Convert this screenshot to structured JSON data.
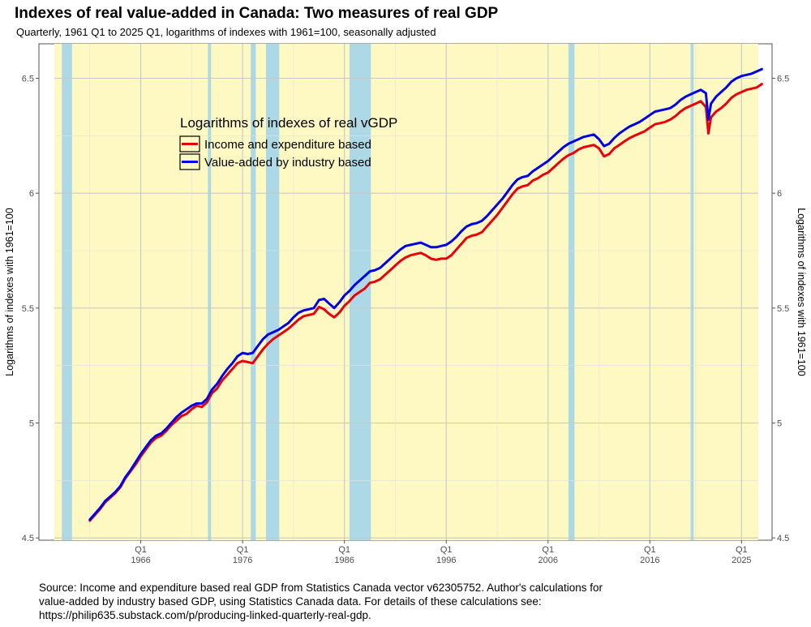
{
  "chart_data": {
    "type": "line",
    "title": "Indexes of real value-added in Canada: Two measures of real GDP",
    "subtitle": "Quarterly, 1961 Q1 to 2025 Q1, logarithms of indexes with 1961=100, seasonally adjusted",
    "ylabel_left": "Logarithms of indexes with 1961=100",
    "ylabel_right": "Logarithms of indexes with 1961=100",
    "xlim": [
      1956.0,
      2028.0
    ],
    "ylim": [
      4.49,
      6.65
    ],
    "x_ticks": [
      {
        "value": 1966.0,
        "quarter": "Q1",
        "year": "1966"
      },
      {
        "value": 1976.0,
        "quarter": "Q1",
        "year": "1976"
      },
      {
        "value": 1986.0,
        "quarter": "Q1",
        "year": "1986"
      },
      {
        "value": 1996.0,
        "quarter": "Q1",
        "year": "1996"
      },
      {
        "value": 2006.0,
        "quarter": "Q1",
        "year": "2006"
      },
      {
        "value": 2016.0,
        "quarter": "Q1",
        "year": "2016"
      },
      {
        "value": 2025.0,
        "quarter": "Q1",
        "year": "2025"
      }
    ],
    "y_ticks": [
      {
        "value": 4.5,
        "label": "4.5"
      },
      {
        "value": 5.0,
        "label": "5"
      },
      {
        "value": 5.5,
        "label": "5.5"
      },
      {
        "value": 6.0,
        "label": "6"
      },
      {
        "value": 6.5,
        "label": "6.5"
      }
    ],
    "recessions": [
      [
        1958.25,
        1959.25
      ],
      [
        1972.6,
        1972.9
      ],
      [
        1976.8,
        1977.3
      ],
      [
        1978.3,
        1979.6
      ],
      [
        1986.5,
        1988.6
      ],
      [
        2008.0,
        2008.6
      ],
      [
        2020.0,
        2020.3
      ]
    ],
    "legend": {
      "title": "Logarithms of indexes of real vGDP",
      "position": "upper-left-inside"
    },
    "series": [
      {
        "name": "Income and expenditure based",
        "color": "#e8000b",
        "points": [
          [
            1961.0,
            4.575
          ],
          [
            1961.5,
            4.6
          ],
          [
            1962.0,
            4.625
          ],
          [
            1962.5,
            4.655
          ],
          [
            1963.0,
            4.675
          ],
          [
            1963.5,
            4.695
          ],
          [
            1964.0,
            4.72
          ],
          [
            1964.5,
            4.76
          ],
          [
            1965.0,
            4.79
          ],
          [
            1965.5,
            4.82
          ],
          [
            1966.0,
            4.855
          ],
          [
            1966.5,
            4.885
          ],
          [
            1967.0,
            4.915
          ],
          [
            1967.5,
            4.935
          ],
          [
            1968.0,
            4.945
          ],
          [
            1968.5,
            4.965
          ],
          [
            1969.0,
            4.99
          ],
          [
            1969.5,
            5.01
          ],
          [
            1970.0,
            5.03
          ],
          [
            1970.5,
            5.04
          ],
          [
            1971.0,
            5.06
          ],
          [
            1971.5,
            5.075
          ],
          [
            1972.0,
            5.07
          ],
          [
            1972.5,
            5.09
          ],
          [
            1973.0,
            5.13
          ],
          [
            1973.5,
            5.15
          ],
          [
            1974.0,
            5.185
          ],
          [
            1974.5,
            5.21
          ],
          [
            1975.0,
            5.235
          ],
          [
            1975.5,
            5.26
          ],
          [
            1976.0,
            5.27
          ],
          [
            1976.5,
            5.265
          ],
          [
            1977.0,
            5.26
          ],
          [
            1977.5,
            5.29
          ],
          [
            1978.0,
            5.32
          ],
          [
            1978.5,
            5.345
          ],
          [
            1979.0,
            5.365
          ],
          [
            1979.5,
            5.38
          ],
          [
            1980.0,
            5.395
          ],
          [
            1980.5,
            5.41
          ],
          [
            1981.0,
            5.43
          ],
          [
            1981.5,
            5.45
          ],
          [
            1982.0,
            5.465
          ],
          [
            1982.5,
            5.47
          ],
          [
            1983.0,
            5.475
          ],
          [
            1983.5,
            5.505
          ],
          [
            1984.0,
            5.495
          ],
          [
            1984.5,
            5.475
          ],
          [
            1985.0,
            5.46
          ],
          [
            1985.5,
            5.48
          ],
          [
            1986.0,
            5.51
          ],
          [
            1986.5,
            5.53
          ],
          [
            1987.0,
            5.555
          ],
          [
            1987.5,
            5.57
          ],
          [
            1988.0,
            5.585
          ],
          [
            1988.5,
            5.61
          ],
          [
            1989.0,
            5.615
          ],
          [
            1989.5,
            5.625
          ],
          [
            1990.0,
            5.645
          ],
          [
            1990.5,
            5.665
          ],
          [
            1991.0,
            5.685
          ],
          [
            1991.5,
            5.705
          ],
          [
            1992.0,
            5.72
          ],
          [
            1992.5,
            5.73
          ],
          [
            1993.0,
            5.735
          ],
          [
            1993.5,
            5.74
          ],
          [
            1994.0,
            5.73
          ],
          [
            1994.5,
            5.715
          ],
          [
            1995.0,
            5.71
          ],
          [
            1995.5,
            5.715
          ],
          [
            1996.0,
            5.715
          ],
          [
            1996.5,
            5.73
          ],
          [
            1997.0,
            5.755
          ],
          [
            1997.5,
            5.78
          ],
          [
            1998.0,
            5.805
          ],
          [
            1998.5,
            5.815
          ],
          [
            1999.0,
            5.82
          ],
          [
            1999.5,
            5.83
          ],
          [
            2000.0,
            5.855
          ],
          [
            2000.5,
            5.88
          ],
          [
            2001.0,
            5.905
          ],
          [
            2001.5,
            5.935
          ],
          [
            2002.0,
            5.965
          ],
          [
            2002.5,
            5.995
          ],
          [
            2003.0,
            6.02
          ],
          [
            2003.5,
            6.03
          ],
          [
            2004.0,
            6.035
          ],
          [
            2004.5,
            6.055
          ],
          [
            2005.0,
            6.065
          ],
          [
            2005.5,
            6.08
          ],
          [
            2006.0,
            6.09
          ],
          [
            2006.5,
            6.11
          ],
          [
            2007.0,
            6.13
          ],
          [
            2007.5,
            6.15
          ],
          [
            2008.0,
            6.165
          ],
          [
            2008.5,
            6.175
          ],
          [
            2009.0,
            6.19
          ],
          [
            2009.5,
            6.2
          ],
          [
            2010.0,
            6.205
          ],
          [
            2010.5,
            6.21
          ],
          [
            2011.0,
            6.195
          ],
          [
            2011.5,
            6.16
          ],
          [
            2012.0,
            6.17
          ],
          [
            2012.5,
            6.195
          ],
          [
            2013.0,
            6.21
          ],
          [
            2013.5,
            6.225
          ],
          [
            2014.0,
            6.24
          ],
          [
            2014.5,
            6.25
          ],
          [
            2015.0,
            6.26
          ],
          [
            2015.5,
            6.27
          ],
          [
            2016.0,
            6.285
          ],
          [
            2016.5,
            6.3
          ],
          [
            2017.0,
            6.305
          ],
          [
            2017.5,
            6.31
          ],
          [
            2018.0,
            6.32
          ],
          [
            2018.5,
            6.335
          ],
          [
            2019.0,
            6.355
          ],
          [
            2019.5,
            6.37
          ],
          [
            2020.0,
            6.38
          ],
          [
            2020.5,
            6.39
          ],
          [
            2021.0,
            6.4
          ],
          [
            2021.5,
            6.375
          ],
          [
            2021.75,
            6.26
          ],
          [
            2022.0,
            6.33
          ],
          [
            2022.5,
            6.355
          ],
          [
            2023.0,
            6.37
          ],
          [
            2023.5,
            6.39
          ],
          [
            2024.0,
            6.415
          ],
          [
            2024.5,
            6.43
          ],
          [
            2025.0,
            6.44
          ],
          [
            2025.5,
            6.45
          ],
          [
            2026.0,
            6.455
          ],
          [
            2026.5,
            6.46
          ],
          [
            2027.0,
            6.475
          ]
        ]
      },
      {
        "name": "Value-added by industry based",
        "color": "#0000e6",
        "points": [
          [
            1961.0,
            4.58
          ],
          [
            1961.5,
            4.605
          ],
          [
            1962.0,
            4.63
          ],
          [
            1962.5,
            4.66
          ],
          [
            1963.0,
            4.68
          ],
          [
            1963.5,
            4.7
          ],
          [
            1964.0,
            4.725
          ],
          [
            1964.5,
            4.765
          ],
          [
            1965.0,
            4.795
          ],
          [
            1965.5,
            4.83
          ],
          [
            1966.0,
            4.865
          ],
          [
            1966.5,
            4.895
          ],
          [
            1967.0,
            4.925
          ],
          [
            1967.5,
            4.945
          ],
          [
            1968.0,
            4.955
          ],
          [
            1968.5,
            4.975
          ],
          [
            1969.0,
            5.0
          ],
          [
            1969.5,
            5.025
          ],
          [
            1970.0,
            5.045
          ],
          [
            1970.5,
            5.06
          ],
          [
            1971.0,
            5.075
          ],
          [
            1971.5,
            5.085
          ],
          [
            1972.0,
            5.085
          ],
          [
            1972.5,
            5.105
          ],
          [
            1973.0,
            5.145
          ],
          [
            1973.5,
            5.17
          ],
          [
            1974.0,
            5.205
          ],
          [
            1974.5,
            5.235
          ],
          [
            1975.0,
            5.26
          ],
          [
            1975.5,
            5.29
          ],
          [
            1976.0,
            5.305
          ],
          [
            1976.5,
            5.3
          ],
          [
            1977.0,
            5.305
          ],
          [
            1977.5,
            5.335
          ],
          [
            1978.0,
            5.365
          ],
          [
            1978.5,
            5.385
          ],
          [
            1979.0,
            5.395
          ],
          [
            1979.5,
            5.405
          ],
          [
            1980.0,
            5.42
          ],
          [
            1980.5,
            5.435
          ],
          [
            1981.0,
            5.46
          ],
          [
            1981.5,
            5.48
          ],
          [
            1982.0,
            5.49
          ],
          [
            1982.5,
            5.495
          ],
          [
            1983.0,
            5.5
          ],
          [
            1983.5,
            5.535
          ],
          [
            1984.0,
            5.54
          ],
          [
            1984.5,
            5.52
          ],
          [
            1985.0,
            5.5
          ],
          [
            1985.5,
            5.525
          ],
          [
            1986.0,
            5.555
          ],
          [
            1986.5,
            5.575
          ],
          [
            1987.0,
            5.6
          ],
          [
            1987.5,
            5.62
          ],
          [
            1988.0,
            5.64
          ],
          [
            1988.5,
            5.66
          ],
          [
            1989.0,
            5.665
          ],
          [
            1989.5,
            5.675
          ],
          [
            1990.0,
            5.695
          ],
          [
            1990.5,
            5.715
          ],
          [
            1991.0,
            5.735
          ],
          [
            1991.5,
            5.755
          ],
          [
            1992.0,
            5.77
          ],
          [
            1992.5,
            5.775
          ],
          [
            1993.0,
            5.78
          ],
          [
            1993.5,
            5.785
          ],
          [
            1994.0,
            5.775
          ],
          [
            1994.5,
            5.765
          ],
          [
            1995.0,
            5.765
          ],
          [
            1995.5,
            5.77
          ],
          [
            1996.0,
            5.775
          ],
          [
            1996.5,
            5.79
          ],
          [
            1997.0,
            5.81
          ],
          [
            1997.5,
            5.835
          ],
          [
            1998.0,
            5.855
          ],
          [
            1998.5,
            5.865
          ],
          [
            1999.0,
            5.87
          ],
          [
            1999.5,
            5.88
          ],
          [
            2000.0,
            5.9
          ],
          [
            2000.5,
            5.925
          ],
          [
            2001.0,
            5.95
          ],
          [
            2001.5,
            5.975
          ],
          [
            2002.0,
            6.005
          ],
          [
            2002.5,
            6.035
          ],
          [
            2003.0,
            6.06
          ],
          [
            2003.5,
            6.07
          ],
          [
            2004.0,
            6.075
          ],
          [
            2004.5,
            6.095
          ],
          [
            2005.0,
            6.11
          ],
          [
            2005.5,
            6.125
          ],
          [
            2006.0,
            6.14
          ],
          [
            2006.5,
            6.16
          ],
          [
            2007.0,
            6.18
          ],
          [
            2007.5,
            6.2
          ],
          [
            2008.0,
            6.215
          ],
          [
            2008.5,
            6.225
          ],
          [
            2009.0,
            6.235
          ],
          [
            2009.5,
            6.245
          ],
          [
            2010.0,
            6.25
          ],
          [
            2010.5,
            6.255
          ],
          [
            2011.0,
            6.235
          ],
          [
            2011.5,
            6.205
          ],
          [
            2012.0,
            6.215
          ],
          [
            2012.5,
            6.24
          ],
          [
            2013.0,
            6.26
          ],
          [
            2013.5,
            6.275
          ],
          [
            2014.0,
            6.29
          ],
          [
            2014.5,
            6.3
          ],
          [
            2015.0,
            6.31
          ],
          [
            2015.5,
            6.325
          ],
          [
            2016.0,
            6.34
          ],
          [
            2016.5,
            6.355
          ],
          [
            2017.0,
            6.36
          ],
          [
            2017.5,
            6.365
          ],
          [
            2018.0,
            6.37
          ],
          [
            2018.5,
            6.385
          ],
          [
            2019.0,
            6.405
          ],
          [
            2019.5,
            6.42
          ],
          [
            2020.0,
            6.43
          ],
          [
            2020.5,
            6.44
          ],
          [
            2021.0,
            6.45
          ],
          [
            2021.5,
            6.435
          ],
          [
            2021.75,
            6.32
          ],
          [
            2022.0,
            6.39
          ],
          [
            2022.5,
            6.42
          ],
          [
            2023.0,
            6.44
          ],
          [
            2023.5,
            6.46
          ],
          [
            2024.0,
            6.485
          ],
          [
            2024.5,
            6.5
          ],
          [
            2025.0,
            6.51
          ],
          [
            2025.5,
            6.515
          ],
          [
            2026.0,
            6.52
          ],
          [
            2026.5,
            6.53
          ],
          [
            2027.0,
            6.54
          ]
        ]
      }
    ]
  },
  "caption": {
    "line1": "Source: Income and expenditure based real GDP from Statistics Canada vector v62305752. Author's calculations for",
    "line2": "value-added by industry based GDP, using Statistics Canada data. For details of these calculations see:",
    "line3": "https://philip635.substack.com/p/producing-linked-quarterly-real-gdp."
  }
}
